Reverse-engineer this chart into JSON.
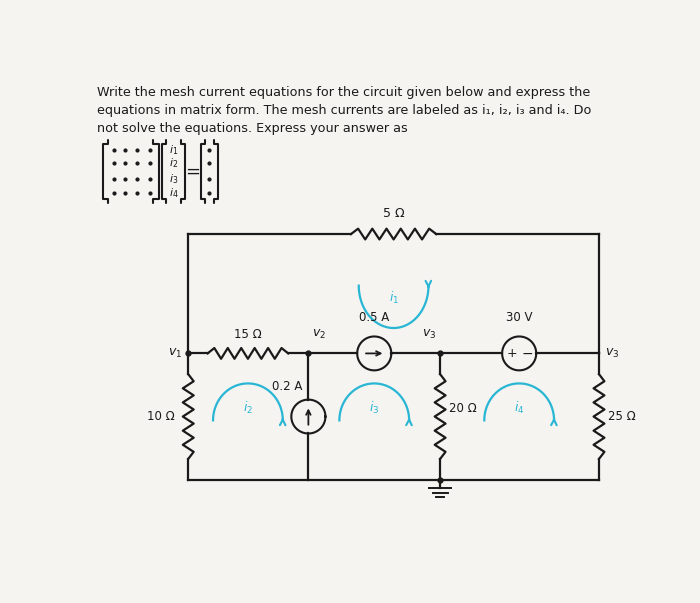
{
  "bg_color": "#f5f4f1",
  "text_color": "#1a1a1a",
  "cyan_color": "#29b6d4",
  "line_color": "#1a1a1a",
  "title_lines": [
    "Write the mesh current equations for the circuit given below and express the",
    "equations in matrix form. The mesh currents are labeled as i₁, i₂, i₃ and i₄. Do",
    "not solve the equations. Express your answer as"
  ],
  "R5_label": "5 Ω",
  "R15_label": "15 Ω",
  "R10_label": "10 Ω",
  "R20_label": "20 Ω",
  "R25_label": "25 Ω",
  "CS1_label": "0.5 A",
  "CS2_label": "0.2 A",
  "VS_label": "30 V",
  "v1_label": "v₁",
  "v2_label": "v₂",
  "v3_label": "v₃",
  "mesh_labels": [
    "i₁",
    "i₂",
    "i₃",
    "i₄"
  ]
}
